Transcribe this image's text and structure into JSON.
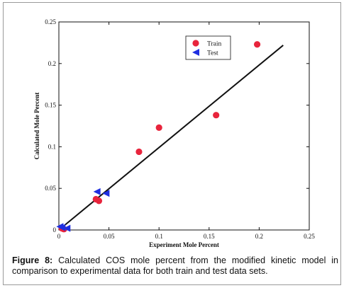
{
  "chart_data": {
    "type": "scatter",
    "title": "",
    "xlabel": "Experiment Mole Percent",
    "ylabel": "Calculated Mole Percent",
    "xlim": [
      0,
      0.25
    ],
    "ylim": [
      0,
      0.25
    ],
    "x_ticks": [
      "0",
      "0.05",
      "0.1",
      "0.15",
      "0.2",
      "0.25"
    ],
    "y_ticks": [
      "0",
      "0.05",
      "0.1",
      "0.15",
      "0.2",
      "0.25"
    ],
    "grid": false,
    "legend_position": "top-right",
    "series": [
      {
        "name": "Train",
        "color": "#e8243c",
        "marker": "circle",
        "points": [
          [
            0.003,
            0.002
          ],
          [
            0.005,
            0.001
          ],
          [
            0.037,
            0.037
          ],
          [
            0.04,
            0.035
          ],
          [
            0.08,
            0.094
          ],
          [
            0.1,
            0.123
          ],
          [
            0.157,
            0.138
          ],
          [
            0.198,
            0.223
          ]
        ]
      },
      {
        "name": "Test",
        "color": "#1f2fe0",
        "marker": "triangle-left",
        "points": [
          [
            0.001,
            0.004
          ],
          [
            0.003,
            0.003
          ],
          [
            0.008,
            0.002
          ],
          [
            0.038,
            0.046
          ],
          [
            0.047,
            0.044
          ]
        ]
      }
    ],
    "fit_line": {
      "x": [
        0,
        0.224
      ],
      "y": [
        0,
        0.222
      ]
    }
  },
  "caption": {
    "label": "Figure 8:",
    "text": " Calculated COS mole percent from the modified kinetic model in comparison to experimental data for both train and test data sets."
  }
}
